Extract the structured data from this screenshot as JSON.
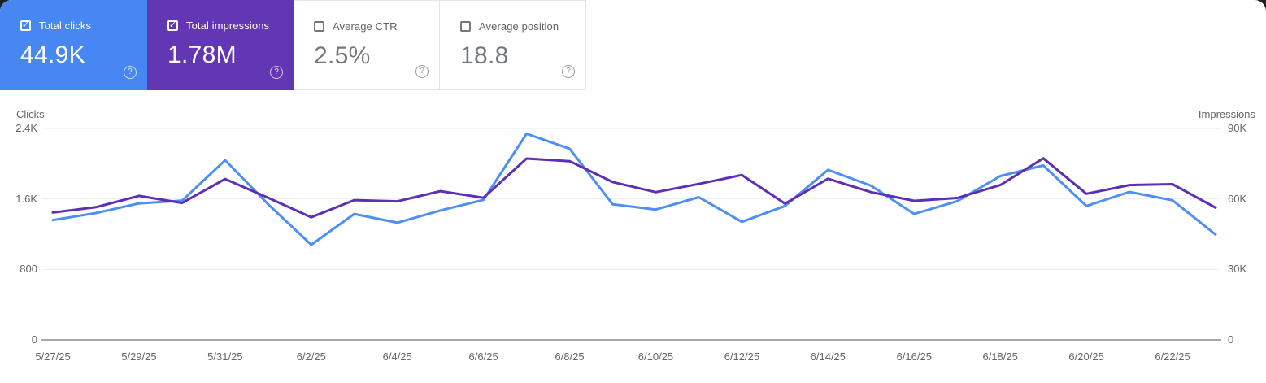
{
  "icons": {
    "check": "✓",
    "help": "?"
  },
  "colors": {
    "clicks_card_bg": "#4787F3",
    "impressions_card_bg": "#6337B3",
    "clicks_line": "#4D8FF2",
    "impressions_line": "#5D2FB5",
    "gridline": "#ECEEF0",
    "axis_line": "#A6A9AC"
  },
  "cards": [
    {
      "label": "Total clicks",
      "value": "44.9K",
      "checked": true
    },
    {
      "label": "Total impressions",
      "value": "1.78M",
      "checked": true
    },
    {
      "label": "Average CTR",
      "value": "2.5%",
      "checked": false
    },
    {
      "label": "Average position",
      "value": "18.8",
      "checked": false
    }
  ],
  "chart_data": {
    "type": "line",
    "grid": "horizontal",
    "x": [
      "5/27/25",
      "5/28/25",
      "5/29/25",
      "5/30/25",
      "5/31/25",
      "6/1/25",
      "6/2/25",
      "6/3/25",
      "6/4/25",
      "6/5/25",
      "6/6/25",
      "6/7/25",
      "6/8/25",
      "6/9/25",
      "6/10/25",
      "6/11/25",
      "6/12/25",
      "6/13/25",
      "6/14/25",
      "6/15/25",
      "6/16/25",
      "6/17/25",
      "6/18/25",
      "6/19/25",
      "6/20/25",
      "6/21/25",
      "6/22/25",
      "6/23/25"
    ],
    "x_tick_labels": [
      "5/27/25",
      "5/29/25",
      "5/31/25",
      "6/2/25",
      "6/4/25",
      "6/6/25",
      "6/8/25",
      "6/10/25",
      "6/12/25",
      "6/14/25",
      "6/16/25",
      "6/18/25",
      "6/20/25",
      "6/22/25"
    ],
    "left_axis": {
      "title": "Clicks",
      "ticks": [
        "2.4K",
        "1.6K",
        "800",
        "0"
      ],
      "min": 0,
      "max": 2400
    },
    "right_axis": {
      "title": "Impressions",
      "ticks": [
        "90K",
        "60K",
        "30K",
        "0"
      ],
      "min": 0,
      "max": 90000
    },
    "series": [
      {
        "name": "Total clicks",
        "axis": "left",
        "color": "#4D8FF2",
        "values": [
          1360,
          1440,
          1550,
          1580,
          2040,
          1540,
          1080,
          1430,
          1330,
          1470,
          1590,
          2340,
          2170,
          1540,
          1480,
          1620,
          1340,
          1520,
          1930,
          1750,
          1430,
          1575,
          1860,
          1980,
          1520,
          1680,
          1585,
          1195
        ]
      },
      {
        "name": "Total impressions",
        "axis": "right",
        "color": "#5D2FB5",
        "values": [
          54200,
          56500,
          61300,
          58300,
          68500,
          60500,
          52200,
          59500,
          59000,
          63300,
          60500,
          77200,
          76100,
          67200,
          62900,
          66400,
          70200,
          58000,
          68600,
          62900,
          59200,
          60400,
          65900,
          77300,
          62200,
          65900,
          66300,
          56300
        ]
      }
    ]
  }
}
